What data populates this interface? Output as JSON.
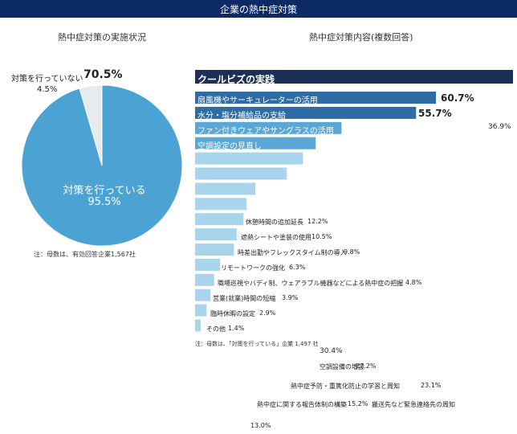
{
  "header": {
    "title": "企業の熱中症対策"
  },
  "left_chart": {
    "title": "熱中症対策の実施状況",
    "note": "注：母数は、有効回答企業1,567社",
    "colors": {
      "doing": "#4aa3d3",
      "not_doing": "#e7ebee",
      "edge": "#ffffff"
    },
    "labels": {
      "not_doing": "対策を行っていない",
      "not_doing_pct": "4.5%",
      "stray_pct": "70.5%",
      "doing": "対策を行っている",
      "doing_pct": "95.5%"
    }
  },
  "right_chart": {
    "title": "熱中症対策内容(複数回答)",
    "header_label": "クールビズの実践",
    "note": "注：母数は、「対策を行っている」企業 1,497 社",
    "colors": {
      "header_bar": "#1b2f57",
      "dark_bar": "#2e6ca6",
      "mid_bar": "#5aa6d5",
      "light_bar": "#a8d4ec"
    }
  },
  "chart_data": [
    {
      "type": "pie",
      "title": "熱中症対策の実施状況",
      "slices": [
        {
          "label": "対策を行っている",
          "value": 95.5
        },
        {
          "label": "対策を行っていない",
          "value": 4.5
        }
      ],
      "stray_label": "70.5%"
    },
    {
      "type": "bar",
      "orientation": "horizontal",
      "title": "熱中症対策内容(複数回答)",
      "header_label": "クールビズの実践",
      "bars": [
        {
          "label": "扇風機やサーキュレーターの活用",
          "value": 60.7,
          "display": "60.7%"
        },
        {
          "label": "水分・塩分補給品の支給",
          "value": 55.7,
          "display": "55.7%"
        },
        {
          "label": "ファン付きウェアやサングラスの活用",
          "value": 36.9,
          "display": "36.9%"
        },
        {
          "label": "空調設定の見直し",
          "value": 30.4,
          "display": "30.4%"
        },
        {
          "label": "空調設備の増設",
          "value": 27.2,
          "display": "27.2%"
        },
        {
          "label": "熱中症予防・重篤化防止の学習と周知",
          "value": 23.1,
          "display": "23.1%"
        },
        {
          "label": "熱中症に関する報告体制の構築",
          "value": 15.2,
          "display": "15.2%"
        },
        {
          "label": "搬送先など緊急連絡先の周知",
          "value": 13.0,
          "display": "13.0%"
        },
        {
          "label": "休憩時間の追加延長",
          "value": 12.2,
          "display": "12.2%"
        },
        {
          "label": "遮熱シートや塗装の使用",
          "value": 10.5,
          "display": "10.5%"
        },
        {
          "label": "時差出勤やフレックスタイム制の導入",
          "value": 9.8,
          "display": "9.8%"
        },
        {
          "label": "リモートワークの強化",
          "value": 6.3,
          "display": "6.3%"
        },
        {
          "label": "職場巡視やバディ制、ウェアラブル機器などによる熱中症の把握",
          "value": 4.8,
          "display": "4.8%"
        },
        {
          "label": "営業(就業)時間の短縮",
          "value": 3.9,
          "display": "3.9%"
        },
        {
          "label": "臨時休暇の設定",
          "value": 2.9,
          "display": "2.9%"
        },
        {
          "label": "その他",
          "value": 1.4,
          "display": "1.4%"
        }
      ]
    }
  ]
}
